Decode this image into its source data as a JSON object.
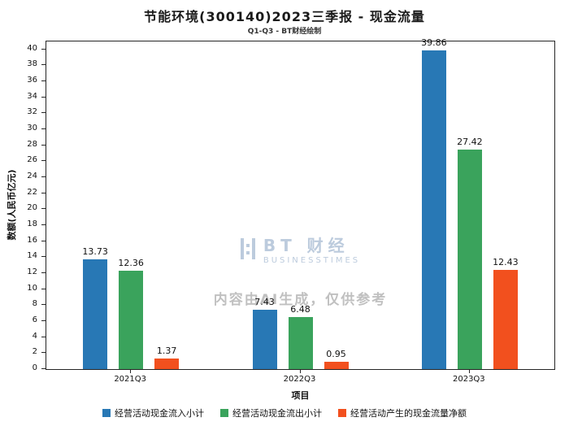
{
  "title": "节能环境(300140)2023三季报 - 现金流量",
  "subtitle": "Q1-Q3 - BT财经绘制",
  "watermark": {
    "brand": "BT 财经",
    "brand_sub": "BUSINESSTIMES",
    "notice": "内容由AI生成，仅供参考"
  },
  "chart_data": {
    "type": "bar",
    "title": "节能环境(300140)2023三季报 - 现金流量",
    "subtitle": "Q1-Q3 - BT财经绘制",
    "categories": [
      "2021Q3",
      "2022Q3",
      "2023Q3"
    ],
    "series": [
      {
        "name": "经营活动现金流入小计",
        "color": "#2878b5",
        "values": [
          13.73,
          7.43,
          39.86
        ]
      },
      {
        "name": "经营活动现金流出小计",
        "color": "#3aa35c",
        "values": [
          12.36,
          6.48,
          27.42
        ]
      },
      {
        "name": "经营活动产生的现金流量净额",
        "color": "#f2501e",
        "values": [
          1.37,
          0.95,
          12.43
        ]
      }
    ],
    "xlabel": "项目",
    "ylabel": "数额(人民币亿元)",
    "ylim": [
      0,
      41
    ],
    "ytick_step": 2,
    "ytick_max": 40,
    "grid": false,
    "legend_position": "bottom"
  }
}
